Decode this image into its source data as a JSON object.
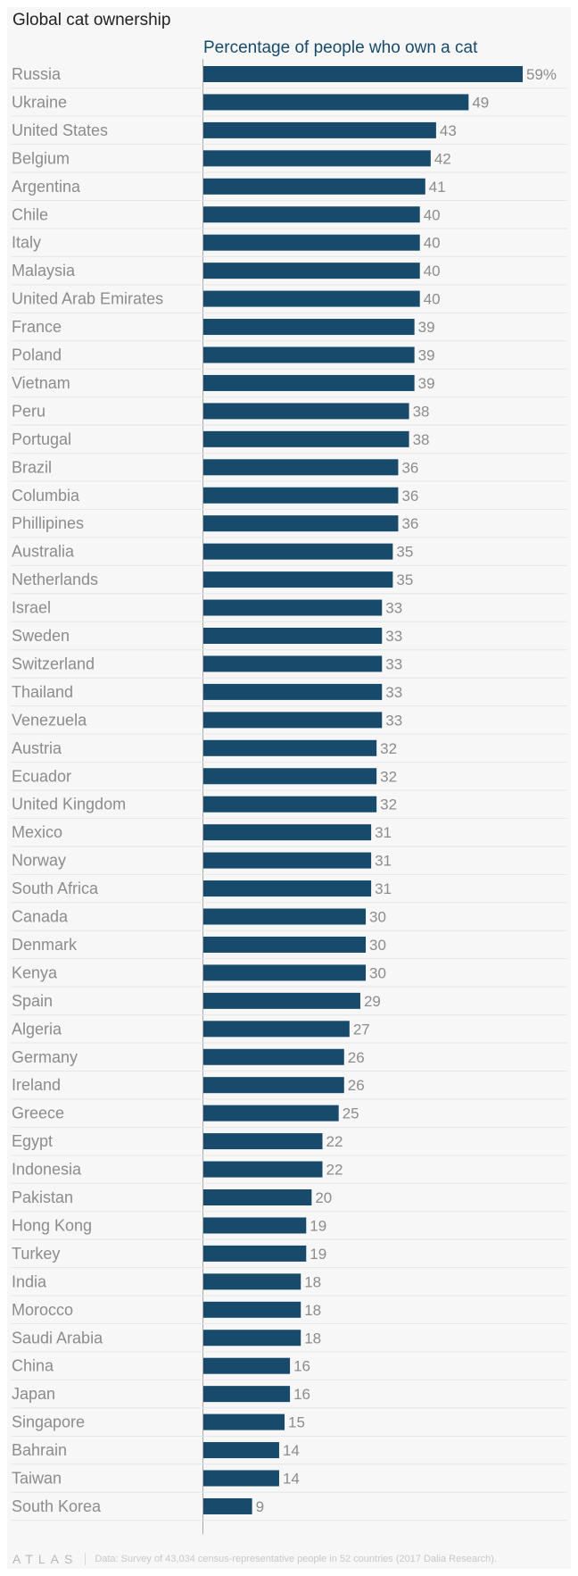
{
  "title": "Global cat ownership",
  "chart_data": {
    "type": "bar",
    "orientation": "horizontal",
    "title": "Global cat ownership",
    "subtitle": "Percentage of people who own a cat",
    "value_suffix": "%",
    "xlim": [
      0,
      59
    ],
    "bar_color": "#174a6b",
    "categories": [
      "Russia",
      "Ukraine",
      "United States",
      "Belgium",
      "Argentina",
      "Chile",
      "Italy",
      "Malaysia",
      "United Arab Emirates",
      "France",
      "Poland",
      "Vietnam",
      "Peru",
      "Portugal",
      "Brazil",
      "Columbia",
      "Phillipines",
      "Australia",
      "Netherlands",
      "Israel",
      "Sweden",
      "Switzerland",
      "Thailand",
      "Venezuela",
      "Austria",
      "Ecuador",
      "United Kingdom",
      "Mexico",
      "Norway",
      "South Africa",
      "Canada",
      "Denmark",
      "Kenya",
      "Spain",
      "Algeria",
      "Germany",
      "Ireland",
      "Greece",
      "Egypt",
      "Indonesia",
      "Pakistan",
      "Hong Kong",
      "Turkey",
      "India",
      "Morocco",
      "Saudi Arabia",
      "China",
      "Japan",
      "Singapore",
      "Bahrain",
      "Taiwan",
      "South Korea"
    ],
    "values": [
      59,
      49,
      43,
      42,
      41,
      40,
      40,
      40,
      40,
      39,
      39,
      39,
      38,
      38,
      36,
      36,
      36,
      35,
      35,
      33,
      33,
      33,
      33,
      33,
      32,
      32,
      32,
      31,
      31,
      31,
      30,
      30,
      30,
      29,
      27,
      26,
      26,
      25,
      22,
      22,
      20,
      19,
      19,
      18,
      18,
      18,
      16,
      16,
      15,
      14,
      14,
      9
    ]
  },
  "footer": {
    "brand": "ATLAS",
    "source": "Data: Survey of 43,034 census-representative people in 52 countries (2017 Dalia Research)."
  }
}
